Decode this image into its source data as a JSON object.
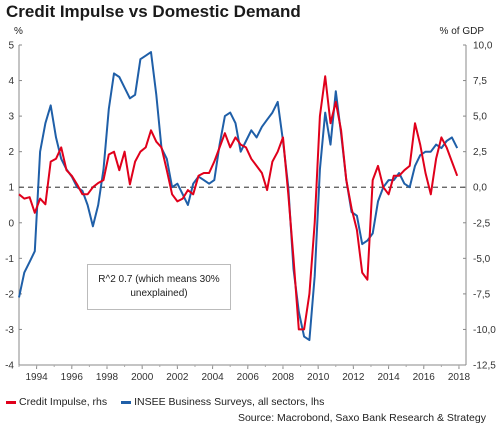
{
  "chart_data": {
    "type": "line",
    "title": "Credit Impulse vs Domestic Demand",
    "ylabel_left": "%",
    "ylabel_right": "% of GDP",
    "x_ticks": [
      "1994",
      "1996",
      "1998",
      "2000",
      "2002",
      "2004",
      "2006",
      "2008",
      "2010",
      "2012",
      "2014",
      "2016",
      "2018"
    ],
    "xlim": [
      1993.0,
      2018.4
    ],
    "y_left": {
      "lim": [
        -4,
        5
      ],
      "ticks": [
        "5",
        "4",
        "3",
        "2",
        "1",
        "0",
        "-1",
        "-2",
        "-3",
        "-4"
      ]
    },
    "y_right": {
      "lim": [
        -12.5,
        10
      ],
      "ticks": [
        "10,0",
        "7,5",
        "5,0",
        "2,5",
        "0,0",
        "-2,5",
        "-5,0",
        "-7,5",
        "-10,0",
        "-12,5"
      ]
    },
    "reference_line": {
      "axis": "right",
      "value": 0
    },
    "series": [
      {
        "name": "Credit Impulse, rhs",
        "axis": "right",
        "color": "#e0001b",
        "x": [
          1993.0,
          1993.3,
          1993.6,
          1993.9,
          1994.2,
          1994.5,
          1994.8,
          1995.1,
          1995.4,
          1995.7,
          1996.0,
          1996.3,
          1996.6,
          1996.9,
          1997.2,
          1997.5,
          1997.8,
          1998.1,
          1998.4,
          1998.7,
          1999.0,
          1999.3,
          1999.6,
          1999.9,
          2000.2,
          2000.5,
          2000.8,
          2001.1,
          2001.4,
          2001.7,
          2002.0,
          2002.3,
          2002.6,
          2002.9,
          2003.2,
          2003.5,
          2003.8,
          2004.1,
          2004.4,
          2004.7,
          2005.0,
          2005.3,
          2005.6,
          2005.9,
          2006.2,
          2006.5,
          2006.8,
          2007.1,
          2007.4,
          2007.7,
          2008.0,
          2008.3,
          2008.6,
          2008.9,
          2009.2,
          2009.5,
          2009.8,
          2010.1,
          2010.4,
          2010.7,
          2011.0,
          2011.3,
          2011.6,
          2011.9,
          2012.2,
          2012.5,
          2012.8,
          2013.1,
          2013.4,
          2013.7,
          2014.0,
          2014.3,
          2014.6,
          2014.9,
          2015.2,
          2015.5,
          2015.8,
          2016.1,
          2016.4,
          2016.7,
          2017.0,
          2017.3,
          2017.6,
          2017.9
        ],
        "values": [
          -0.5,
          -0.8,
          -0.7,
          -1.8,
          -0.8,
          -1.2,
          1.8,
          2.0,
          2.8,
          1.2,
          0.8,
          0.2,
          -0.5,
          -0.5,
          0.0,
          0.3,
          0.5,
          2.3,
          2.5,
          1.2,
          2.5,
          0.2,
          1.8,
          2.5,
          2.8,
          4.0,
          3.2,
          2.8,
          1.2,
          -0.5,
          -1.0,
          -0.8,
          -0.2,
          -0.5,
          0.8,
          1.0,
          1.0,
          1.8,
          2.8,
          3.8,
          2.8,
          3.5,
          3.0,
          2.8,
          2.0,
          1.5,
          1.0,
          -0.2,
          1.8,
          2.5,
          3.5,
          -0.5,
          -5.0,
          -10.0,
          -10.0,
          -7.5,
          -2.5,
          5.0,
          7.8,
          4.5,
          6.0,
          4.0,
          0.5,
          -1.5,
          -3.0,
          -6.0,
          -6.5,
          0.5,
          1.5,
          0.0,
          -0.5,
          0.8,
          0.8,
          1.2,
          1.5,
          4.5,
          3.0,
          1.0,
          -0.5,
          2.0,
          3.5,
          2.8,
          1.8,
          0.8
        ]
      },
      {
        "name": "INSEE Business Surveys, all sectors, lhs",
        "axis": "left",
        "color": "#1f5fa8",
        "x": [
          1993.0,
          1993.3,
          1993.6,
          1993.9,
          1994.2,
          1994.5,
          1994.8,
          1995.1,
          1995.4,
          1995.7,
          1996.0,
          1996.3,
          1996.6,
          1996.9,
          1997.2,
          1997.5,
          1997.8,
          1998.1,
          1998.4,
          1998.7,
          1999.0,
          1999.3,
          1999.6,
          1999.9,
          2000.2,
          2000.5,
          2000.8,
          2001.1,
          2001.4,
          2001.7,
          2002.0,
          2002.3,
          2002.6,
          2002.9,
          2003.2,
          2003.5,
          2003.8,
          2004.1,
          2004.4,
          2004.7,
          2005.0,
          2005.3,
          2005.6,
          2005.9,
          2006.2,
          2006.5,
          2006.8,
          2007.1,
          2007.4,
          2007.7,
          2008.0,
          2008.3,
          2008.6,
          2008.9,
          2009.2,
          2009.5,
          2009.8,
          2010.1,
          2010.4,
          2010.7,
          2011.0,
          2011.3,
          2011.6,
          2011.9,
          2012.2,
          2012.5,
          2012.8,
          2013.1,
          2013.4,
          2013.7,
          2014.0,
          2014.3,
          2014.6,
          2014.9,
          2015.2,
          2015.5,
          2015.8,
          2016.1,
          2016.4,
          2016.7,
          2017.0,
          2017.3,
          2017.6,
          2017.9
        ],
        "values": [
          -2.1,
          -1.4,
          -1.1,
          -0.8,
          2.0,
          2.8,
          3.3,
          2.4,
          1.8,
          1.5,
          1.3,
          1.0,
          0.9,
          0.5,
          -0.1,
          0.5,
          1.5,
          3.2,
          4.2,
          4.1,
          3.8,
          3.5,
          3.6,
          4.6,
          4.7,
          4.8,
          3.6,
          2.1,
          1.8,
          1.0,
          1.1,
          0.8,
          0.5,
          1.1,
          1.3,
          1.2,
          1.1,
          1.2,
          2.2,
          3.0,
          3.1,
          2.8,
          2.0,
          2.3,
          2.6,
          2.4,
          2.7,
          2.9,
          3.1,
          3.4,
          2.3,
          1.0,
          -1.3,
          -2.5,
          -3.2,
          -3.3,
          -1.5,
          1.5,
          3.1,
          2.2,
          3.7,
          2.5,
          1.2,
          0.3,
          0.2,
          -0.6,
          -0.5,
          -0.3,
          0.6,
          1.0,
          1.2,
          1.2,
          1.4,
          1.1,
          1.0,
          1.6,
          1.9,
          2.0,
          2.0,
          2.2,
          2.1,
          2.3,
          2.4,
          2.1
        ]
      }
    ],
    "legend_position": "bottom",
    "annotation": "R^2 0.7 (which means 30% unexplained)",
    "source": "Source: Macrobond, Saxo Bank Research & Strategy"
  }
}
